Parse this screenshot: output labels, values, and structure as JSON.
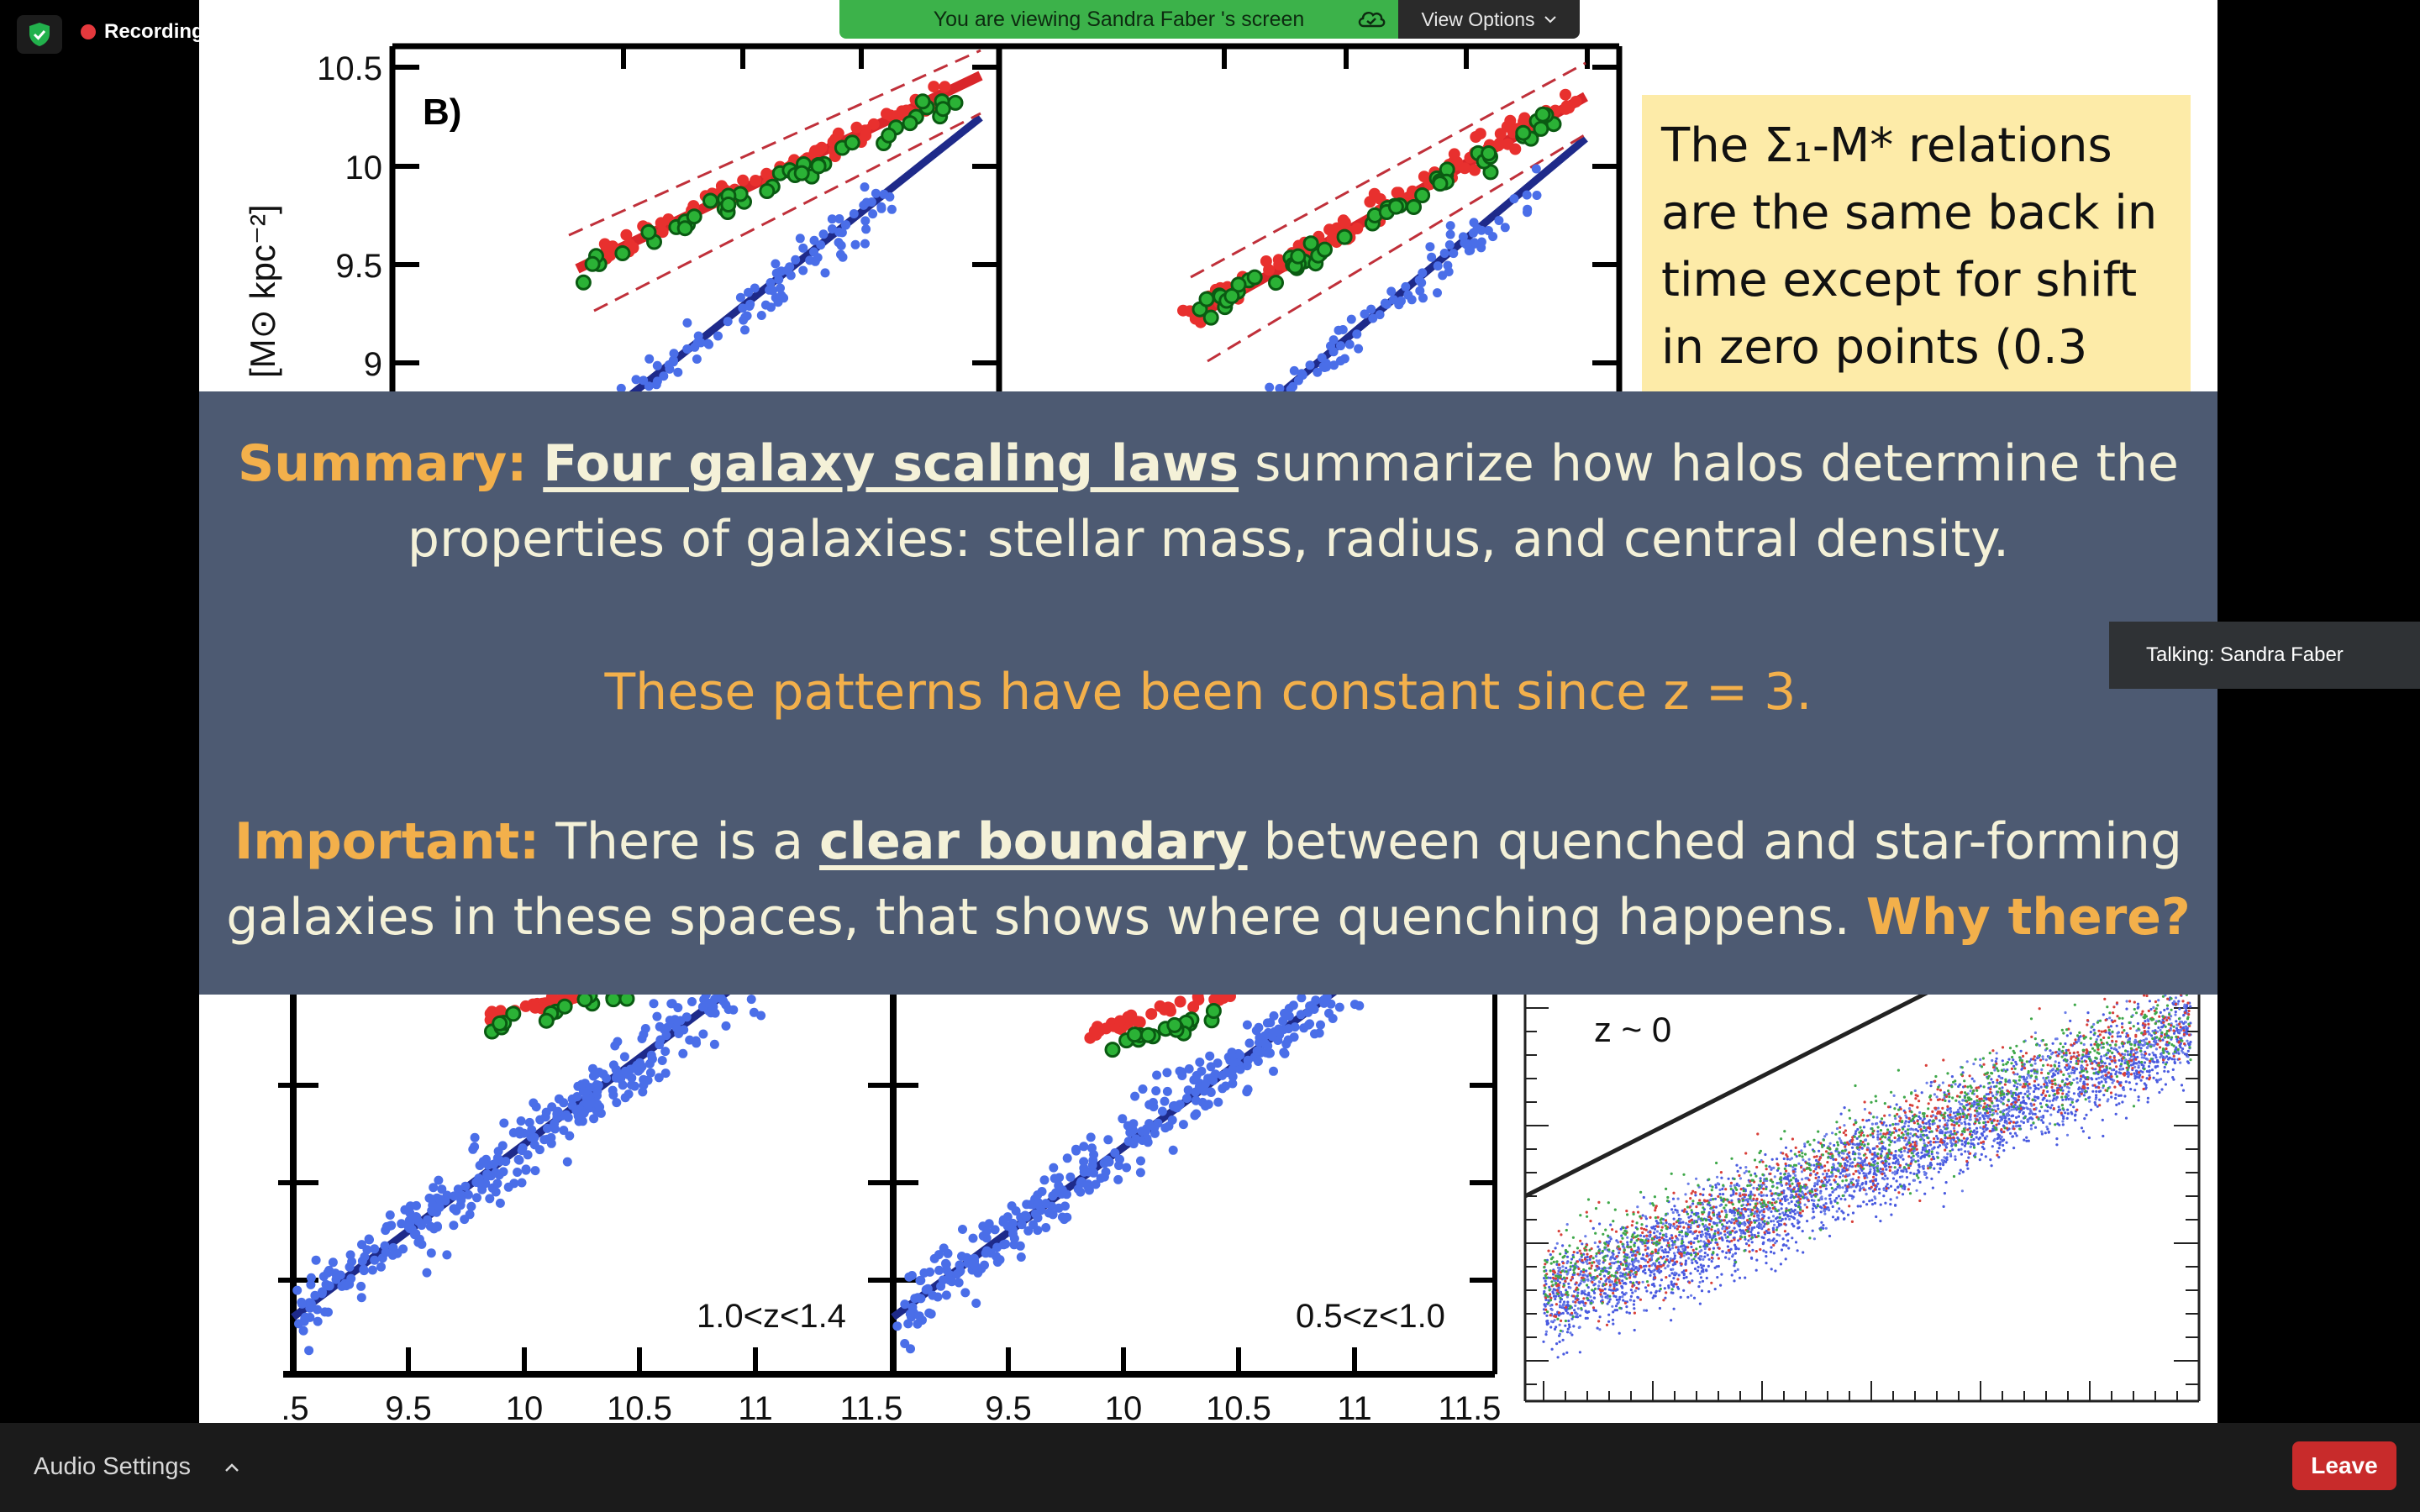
{
  "share_banner": {
    "viewing_text": "You are viewing Sandra Faber 's screen",
    "view_options_label": "View Options"
  },
  "recording": {
    "label": "Recording"
  },
  "slide": {
    "panel_b_label": "B)",
    "y_axis_label": "[M⊙ kpc⁻²]",
    "y_ticks": [
      "10.5",
      "10",
      "9.5",
      "9"
    ],
    "callout_lines": [
      "The Σ₁-M* relations",
      "are the same back in",
      "time except for shift",
      "in zero points (0.3"
    ],
    "lower_panels": [
      {
        "redshift_label": "1.0<z<1.4"
      },
      {
        "redshift_label": "0.5<z<1.0"
      }
    ],
    "x_ticks_left": [
      ".5",
      "9.5",
      "10",
      "10.5",
      "11",
      "11.5"
    ],
    "x_ticks_mid": [
      "9.5",
      "10",
      "10.5",
      "11",
      "11.5"
    ],
    "right_panel_label": "z ~ 0"
  },
  "summary": {
    "line1_lead": "Summary:",
    "line1_link": "Four galaxy scaling laws",
    "line1_rest": " summarize how halos determine the",
    "line2": "properties of galaxies: stellar mass, radius, and central density.",
    "line3": "These patterns have been constant since z = 3.",
    "line4_lead": "Important:",
    "line4_pre": " There is a ",
    "line4_link": "clear boundary",
    "line4_rest": " between quenched and star-forming",
    "line5": "galaxies in these spaces, that shows where quenching happens. ",
    "line5_question": "Why there?"
  },
  "talking": {
    "label": "Talking: Sandra Faber"
  },
  "bottom_bar": {
    "audio_settings_label": "Audio Settings",
    "leave_label": "Leave"
  },
  "colors": {
    "summary_bg": "#4d5a72",
    "summary_text": "#f4f1d8",
    "accent_orange": "#f3b04b",
    "callout_bg": "#fdeba8",
    "leave_red": "#c82b2b",
    "banner_green": "#3cb24a"
  }
}
